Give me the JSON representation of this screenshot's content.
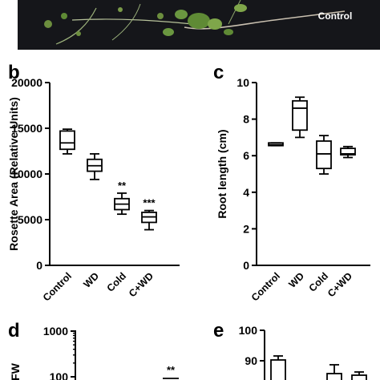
{
  "photo": {
    "label": "Control"
  },
  "panels": [
    {
      "id": "b",
      "letter": "b"
    },
    {
      "id": "c",
      "letter": "c"
    },
    {
      "id": "d",
      "letter": "d"
    },
    {
      "id": "e",
      "letter": "e"
    }
  ],
  "chart_data": [
    {
      "panel": "b",
      "type": "box",
      "title": "",
      "ylabel": "Rosette Area (Relative Units)",
      "ylim": [
        0,
        20000
      ],
      "yticks": [
        0,
        5000,
        10000,
        15000,
        20000
      ],
      "categories": [
        "Control",
        "WD",
        "Cold",
        "C+WD"
      ],
      "boxes": [
        {
          "category": "Control",
          "min": 12200,
          "q1": 12700,
          "median": 13400,
          "q3": 14700,
          "max": 14900,
          "sig": ""
        },
        {
          "category": "WD",
          "min": 9400,
          "q1": 10300,
          "median": 10900,
          "q3": 11600,
          "max": 12200,
          "sig": ""
        },
        {
          "category": "Cold",
          "min": 5600,
          "q1": 6100,
          "median": 6700,
          "q3": 7300,
          "max": 7900,
          "sig": "**"
        },
        {
          "category": "C+WD",
          "min": 3900,
          "q1": 4700,
          "median": 5300,
          "q3": 5800,
          "max": 6000,
          "sig": "***"
        }
      ]
    },
    {
      "panel": "c",
      "type": "box",
      "title": "",
      "ylabel": "Root length (cm)",
      "ylim": [
        0,
        10
      ],
      "yticks": [
        0,
        2,
        4,
        6,
        8,
        10
      ],
      "categories": [
        "Control",
        "WD",
        "Cold",
        "C+WD"
      ],
      "boxes": [
        {
          "category": "Control",
          "min": 6.55,
          "q1": 6.55,
          "median": 6.6,
          "q3": 6.7,
          "max": 6.7,
          "sig": ""
        },
        {
          "category": "WD",
          "min": 7.0,
          "q1": 7.4,
          "median": 8.6,
          "q3": 9.0,
          "max": 9.2,
          "sig": ""
        },
        {
          "category": "Cold",
          "min": 5.0,
          "q1": 5.3,
          "median": 6.1,
          "q3": 6.8,
          "max": 7.1,
          "sig": ""
        },
        {
          "category": "C+WD",
          "min": 5.9,
          "q1": 6.05,
          "median": 6.1,
          "q3": 6.4,
          "max": 6.5,
          "sig": ""
        }
      ]
    },
    {
      "panel": "d",
      "type": "box",
      "title": "",
      "ylabel": "FW",
      "yscale": "log",
      "yticks": [
        100,
        1000
      ],
      "sig_marks": [
        "**"
      ]
    },
    {
      "panel": "e",
      "type": "box",
      "title": "",
      "ylabel": "",
      "yticks": [
        90,
        100
      ]
    }
  ]
}
